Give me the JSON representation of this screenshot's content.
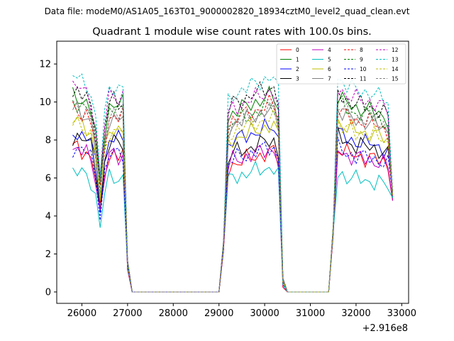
{
  "header": {
    "data_file": "Data file: modeM0/AS1A05_163T01_9000002820_18934cztM0_level2_quad_clean.evt"
  },
  "chart_data": {
    "type": "line",
    "title": "Quadrant 1 module wise count rates with 100.0s bins.",
    "xlabel": "",
    "ylabel": "",
    "x_offset_label": "+2.916e8",
    "xlim": [
      25450,
      33150
    ],
    "ylim": [
      -0.6,
      13.2
    ],
    "x_ticks": [
      26000,
      27000,
      28000,
      29000,
      30000,
      31000,
      32000,
      33000
    ],
    "x_tick_labels": [
      "26000",
      "27000",
      "28000",
      "29000",
      "30000",
      "31000",
      "32000",
      "33000"
    ],
    "y_ticks": [
      0,
      2,
      4,
      6,
      8,
      10,
      12
    ],
    "y_tick_labels": [
      "0",
      "2",
      "4",
      "6",
      "8",
      "10",
      "12"
    ],
    "legend_position": "top-right",
    "segments": [
      {
        "x_start": 25800,
        "x_end": 26900,
        "shape": [
          1.0,
          1.0,
          0.98,
          0.97,
          0.93,
          0.8,
          0.55,
          0.82,
          0.95,
          0.96,
          0.95,
          0.96
        ]
      },
      {
        "x_start": 29200,
        "x_end": 30300,
        "shape": [
          0.88,
          0.92,
          0.93,
          0.94,
          0.95,
          0.96,
          0.97,
          0.98,
          0.99,
          1.0,
          1.0,
          0.93
        ]
      },
      {
        "x_start": 31600,
        "x_end": 32700,
        "shape": [
          1.0,
          0.98,
          0.96,
          0.95,
          0.94,
          0.94,
          0.93,
          0.93,
          0.92,
          0.91,
          0.9,
          0.88
        ]
      }
    ],
    "gap_bins": {
      "after_segment_1": [
        [
          27000,
          1.2
        ],
        [
          27100,
          0.0
        ],
        [
          29000,
          0.0
        ],
        [
          29100,
          2.2
        ]
      ],
      "after_segment_2": [
        [
          30400,
          0.25
        ],
        [
          30500,
          0.0
        ],
        [
          31400,
          0.0
        ],
        [
          31500,
          3.0
        ]
      ],
      "tail": [
        [
          32800,
          4.8
        ]
      ]
    },
    "series": [
      {
        "name": "0",
        "color": "#ff0000",
        "dashed": false,
        "level": 7.6
      },
      {
        "name": "1",
        "color": "#008000",
        "dashed": false,
        "level": 10.3
      },
      {
        "name": "2",
        "color": "#0000ff",
        "dashed": false,
        "level": 8.4
      },
      {
        "name": "3",
        "color": "#000000",
        "dashed": false,
        "level": 8.2
      },
      {
        "name": "4",
        "color": "#bf00bf",
        "dashed": false,
        "level": 7.5
      },
      {
        "name": "5",
        "color": "#00bfbf",
        "dashed": false,
        "level": 6.3
      },
      {
        "name": "6",
        "color": "#bfbf00",
        "dashed": false,
        "level": 9.0
      },
      {
        "name": "7",
        "color": "#808080",
        "dashed": false,
        "level": 9.6
      },
      {
        "name": "8",
        "color": "#ff0000",
        "dashed": true,
        "level": 9.6
      },
      {
        "name": "9",
        "color": "#008000",
        "dashed": true,
        "level": 10.0
      },
      {
        "name": "10",
        "color": "#0000ff",
        "dashed": true,
        "level": 7.6
      },
      {
        "name": "11",
        "color": "#000000",
        "dashed": true,
        "level": 10.5
      },
      {
        "name": "12",
        "color": "#bf00bf",
        "dashed": true,
        "level": 10.8
      },
      {
        "name": "13",
        "color": "#00bfbf",
        "dashed": true,
        "level": 11.3
      },
      {
        "name": "14",
        "color": "#bfbf00",
        "dashed": true,
        "level": 8.9
      },
      {
        "name": "15",
        "color": "#808080",
        "dashed": true,
        "level": 9.8
      }
    ]
  }
}
